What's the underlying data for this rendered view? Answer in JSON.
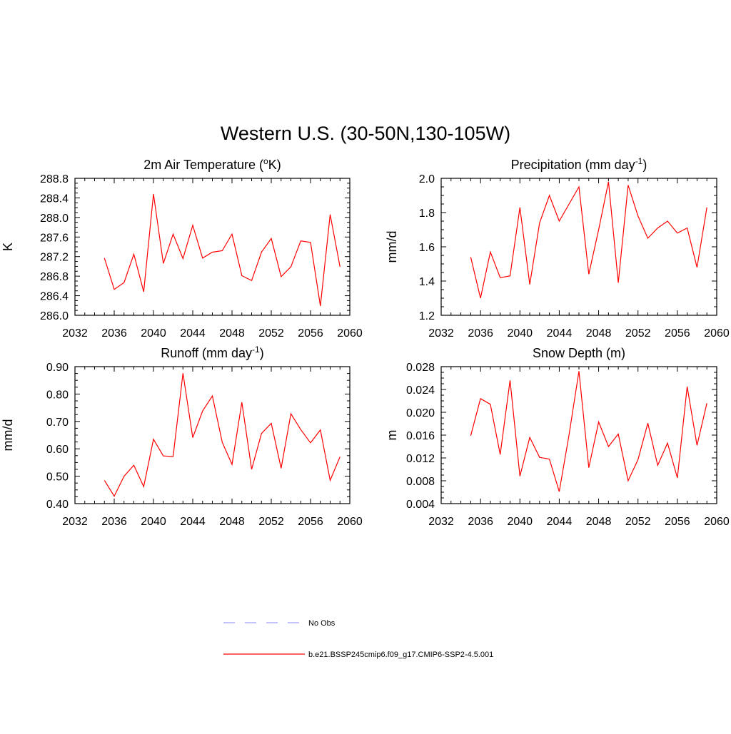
{
  "title": "Western U.S. (30-50N,130-105W)",
  "chart_data": [
    {
      "type": "line",
      "title": "2m Air Temperature (",
      "title_sup": "o",
      "title_tail": "K)",
      "ylabel": "K",
      "xlim": [
        2032,
        2060
      ],
      "xticks": [
        2032,
        2036,
        2040,
        2044,
        2048,
        2052,
        2056,
        2060
      ],
      "ylim": [
        286.0,
        288.8
      ],
      "yticks": [
        "286.0",
        "286.4",
        "286.8",
        "287.2",
        "287.6",
        "288.0",
        "288.4",
        "288.8"
      ],
      "x": [
        2035,
        2036,
        2037,
        2038,
        2039,
        2040,
        2041,
        2042,
        2043,
        2044,
        2045,
        2046,
        2047,
        2048,
        2049,
        2050,
        2051,
        2052,
        2053,
        2054,
        2055,
        2056,
        2057,
        2058,
        2059
      ],
      "series": [
        {
          "name": "b.e21.BSSP245cmip6.f09_g17.CMIP6-SSP2-4.5.001",
          "color": "#ff0000",
          "values": [
            287.17,
            286.53,
            286.67,
            287.25,
            286.48,
            288.48,
            287.06,
            287.66,
            287.16,
            287.84,
            287.17,
            287.29,
            287.32,
            287.66,
            286.81,
            286.71,
            287.29,
            287.57,
            286.79,
            286.99,
            287.52,
            287.49,
            286.19,
            288.06,
            286.99
          ]
        }
      ]
    },
    {
      "type": "line",
      "title": "Precipitation (mm day",
      "title_sup": "-1",
      "title_tail": ")",
      "ylabel": "mm/d",
      "xlim": [
        2032,
        2060
      ],
      "xticks": [
        2032,
        2036,
        2040,
        2044,
        2048,
        2052,
        2056,
        2060
      ],
      "ylim": [
        1.2,
        2.0
      ],
      "yticks": [
        "1.2",
        "1.4",
        "1.6",
        "1.8",
        "2.0"
      ],
      "x": [
        2035,
        2036,
        2037,
        2038,
        2039,
        2040,
        2041,
        2042,
        2043,
        2044,
        2045,
        2046,
        2047,
        2048,
        2049,
        2050,
        2051,
        2052,
        2053,
        2054,
        2055,
        2056,
        2057,
        2058,
        2059
      ],
      "series": [
        {
          "name": "b.e21.BSSP245cmip6.f09_g17.CMIP6-SSP2-4.5.001",
          "color": "#ff0000",
          "values": [
            1.54,
            1.3,
            1.57,
            1.42,
            1.43,
            1.83,
            1.38,
            1.74,
            1.9,
            1.75,
            1.85,
            1.95,
            1.44,
            1.7,
            1.98,
            1.39,
            1.96,
            1.78,
            1.65,
            1.71,
            1.75,
            1.68,
            1.71,
            1.48,
            1.83
          ]
        }
      ]
    },
    {
      "type": "line",
      "title": "Runoff (mm day",
      "title_sup": "-1",
      "title_tail": ")",
      "ylabel": "mm/d",
      "xlim": [
        2032,
        2060
      ],
      "xticks": [
        2032,
        2036,
        2040,
        2044,
        2048,
        2052,
        2056,
        2060
      ],
      "ylim": [
        0.4,
        0.9
      ],
      "yticks": [
        "0.40",
        "0.50",
        "0.60",
        "0.70",
        "0.80",
        "0.90"
      ],
      "x": [
        2035,
        2036,
        2037,
        2038,
        2039,
        2040,
        2041,
        2042,
        2043,
        2044,
        2045,
        2046,
        2047,
        2048,
        2049,
        2050,
        2051,
        2052,
        2053,
        2054,
        2055,
        2056,
        2057,
        2058,
        2059
      ],
      "series": [
        {
          "name": "b.e21.BSSP245cmip6.f09_g17.CMIP6-SSP2-4.5.001",
          "color": "#ff0000",
          "values": [
            0.485,
            0.427,
            0.5,
            0.54,
            0.462,
            0.635,
            0.574,
            0.572,
            0.876,
            0.641,
            0.738,
            0.793,
            0.624,
            0.543,
            0.77,
            0.525,
            0.656,
            0.693,
            0.529,
            0.728,
            0.67,
            0.622,
            0.669,
            0.485,
            0.571
          ]
        }
      ]
    },
    {
      "type": "line",
      "title": "Snow Depth (m)",
      "title_sup": "",
      "title_tail": "",
      "ylabel": "m",
      "xlim": [
        2032,
        2060
      ],
      "xticks": [
        2032,
        2036,
        2040,
        2044,
        2048,
        2052,
        2056,
        2060
      ],
      "ylim": [
        0.004,
        0.028
      ],
      "yticks": [
        "0.004",
        "0.008",
        "0.012",
        "0.016",
        "0.020",
        "0.024",
        "0.028"
      ],
      "x": [
        2035,
        2036,
        2037,
        2038,
        2039,
        2040,
        2041,
        2042,
        2043,
        2044,
        2045,
        2046,
        2047,
        2048,
        2049,
        2050,
        2051,
        2052,
        2053,
        2054,
        2055,
        2056,
        2057,
        2058,
        2059
      ],
      "series": [
        {
          "name": "b.e21.BSSP245cmip6.f09_g17.CMIP6-SSP2-4.5.001",
          "color": "#ff0000",
          "values": [
            0.0159,
            0.0224,
            0.0214,
            0.0126,
            0.0256,
            0.0088,
            0.0156,
            0.0121,
            0.0118,
            0.0061,
            0.0161,
            0.0272,
            0.0103,
            0.0183,
            0.014,
            0.0162,
            0.008,
            0.0117,
            0.0181,
            0.0107,
            0.0146,
            0.0085,
            0.0245,
            0.0142,
            0.0216
          ]
        }
      ]
    }
  ],
  "legend": [
    {
      "label": "No Obs",
      "color": "#a0a0ff",
      "dash": true
    },
    {
      "label": "b.e21.BSSP245cmip6.f09_g17.CMIP6-SSP2-4.5.001",
      "color": "#ff0000",
      "dash": false
    }
  ]
}
